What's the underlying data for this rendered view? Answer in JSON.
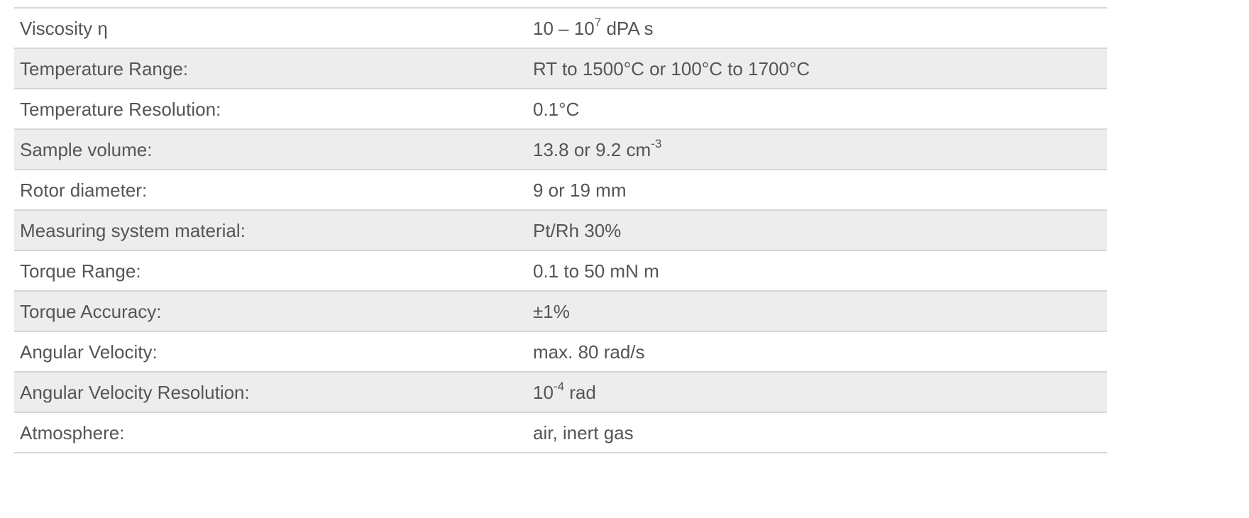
{
  "specs": [
    {
      "label": "Viscosity η",
      "value": "10 – 10",
      "sup": "7",
      "suffix": " dPA s"
    },
    {
      "label": "Temperature Range:",
      "value": "RT to 1500°C or 100°C to 1700°C"
    },
    {
      "label": "Temperature Resolution:",
      "value": "0.1°C"
    },
    {
      "label": "Sample volume:",
      "value": "13.8 or 9.2 cm",
      "sup": "-3"
    },
    {
      "label": "Rotor diameter:",
      "value": "9 or 19 mm"
    },
    {
      "label": "Measuring system material:",
      "value": "Pt/Rh 30%"
    },
    {
      "label": "Torque Range:",
      "value": "0.1 to 50 mN m"
    },
    {
      "label": "Torque Accuracy:",
      "value": "±1%"
    },
    {
      "label": "Angular Velocity:",
      "value": "max. 80 rad/s"
    },
    {
      "label": "Angular Velocity Resolution:",
      "value": "10",
      "sup": "-4",
      "suffix": " rad"
    },
    {
      "label": "Atmosphere:",
      "value": "air, inert gas"
    }
  ]
}
